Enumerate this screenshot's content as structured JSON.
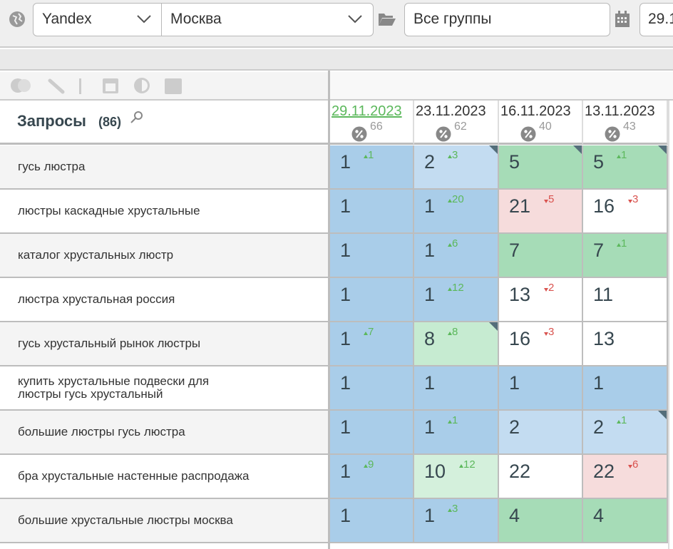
{
  "toolbar": {
    "engine": "Yandex",
    "region": "Москва",
    "group": "Все группы",
    "date": "29.1"
  },
  "table": {
    "title": "Запросы",
    "count": "(86)",
    "columns": [
      {
        "date": "29.11.2023",
        "percent": 66
      },
      {
        "date": "23.11.2023",
        "percent": 62
      },
      {
        "date": "16.11.2023",
        "percent": 40
      },
      {
        "date": "13.11.2023",
        "percent": 43
      }
    ],
    "rows": [
      {
        "query": "гусь люстра",
        "cells": [
          {
            "pos": 1,
            "change": 1,
            "dir": "up",
            "color": "#a9cde9",
            "corner": false
          },
          {
            "pos": 2,
            "change": 3,
            "dir": "up",
            "color": "#c3dcf1",
            "corner": true
          },
          {
            "pos": 5,
            "color": "#a6dcb7",
            "corner": true
          },
          {
            "pos": 5,
            "change": 1,
            "dir": "up",
            "color": "#a6dcb7",
            "corner": true
          }
        ]
      },
      {
        "query": "люстры каскадные хрустальные",
        "cells": [
          {
            "pos": 1,
            "color": "#a9cde9",
            "corner": false
          },
          {
            "pos": 1,
            "change": 20,
            "dir": "up",
            "color": "#a9cde9",
            "corner": false
          },
          {
            "pos": 21,
            "change": 5,
            "dir": "down",
            "color": "#f6dcdc",
            "corner": false
          },
          {
            "pos": 16,
            "change": 3,
            "dir": "down",
            "color": "#ffffff",
            "corner": false
          }
        ]
      },
      {
        "query": "каталог хрустальных люстр",
        "cells": [
          {
            "pos": 1,
            "color": "#a9cde9",
            "corner": false
          },
          {
            "pos": 1,
            "change": 6,
            "dir": "up",
            "color": "#a9cde9",
            "corner": false
          },
          {
            "pos": 7,
            "color": "#a6dcb7",
            "corner": false
          },
          {
            "pos": 7,
            "change": 1,
            "dir": "up",
            "color": "#a6dcb7",
            "corner": false
          }
        ]
      },
      {
        "query": "люстра хрустальная россия",
        "cells": [
          {
            "pos": 1,
            "color": "#a9cde9",
            "corner": false
          },
          {
            "pos": 1,
            "change": 12,
            "dir": "up",
            "color": "#a9cde9",
            "corner": false
          },
          {
            "pos": 13,
            "change": 2,
            "dir": "down",
            "color": "#ffffff",
            "corner": false
          },
          {
            "pos": 11,
            "color": "#ffffff",
            "corner": false
          }
        ]
      },
      {
        "query": "гусь хрустальный рынок люстры",
        "cells": [
          {
            "pos": 1,
            "change": 7,
            "dir": "up",
            "color": "#a9cde9",
            "corner": false
          },
          {
            "pos": 8,
            "change": 8,
            "dir": "up",
            "color": "#c6ebd1",
            "corner": true
          },
          {
            "pos": 16,
            "change": 3,
            "dir": "down",
            "color": "#ffffff",
            "corner": false
          },
          {
            "pos": 13,
            "color": "#ffffff",
            "corner": false
          }
        ]
      },
      {
        "query": "купить хрустальные подвески для люстры гусь хрустальный",
        "cells": [
          {
            "pos": 1,
            "color": "#a9cde9",
            "corner": false
          },
          {
            "pos": 1,
            "color": "#a9cde9",
            "corner": false
          },
          {
            "pos": 1,
            "color": "#a9cde9",
            "corner": false
          },
          {
            "pos": 1,
            "color": "#a9cde9",
            "corner": false
          }
        ]
      },
      {
        "query": "большие люстры гусь люстра",
        "cells": [
          {
            "pos": 1,
            "color": "#a9cde9",
            "corner": false
          },
          {
            "pos": 1,
            "change": 1,
            "dir": "up",
            "color": "#a9cde9",
            "corner": false
          },
          {
            "pos": 2,
            "color": "#c3dcf1",
            "corner": false
          },
          {
            "pos": 2,
            "change": 1,
            "dir": "up",
            "color": "#c3dcf1",
            "corner": true
          }
        ]
      },
      {
        "query": "бра хрустальные настенные распродажа",
        "cells": [
          {
            "pos": 1,
            "change": 9,
            "dir": "up",
            "color": "#a9cde9",
            "corner": false
          },
          {
            "pos": 10,
            "change": 12,
            "dir": "up",
            "color": "#d4f0dc",
            "corner": false
          },
          {
            "pos": 22,
            "color": "#ffffff",
            "corner": false
          },
          {
            "pos": 22,
            "change": 6,
            "dir": "down",
            "color": "#f6dcdc",
            "corner": false
          }
        ]
      },
      {
        "query": "большие хрустальные люстры москва",
        "cells": [
          {
            "pos": 1,
            "color": "#a9cde9",
            "corner": false
          },
          {
            "pos": 1,
            "change": 3,
            "dir": "up",
            "color": "#a9cde9",
            "corner": false
          },
          {
            "pos": 4,
            "color": "#a6dcb7",
            "corner": false
          },
          {
            "pos": 4,
            "color": "#a6dcb7",
            "corner": false
          }
        ]
      }
    ]
  }
}
